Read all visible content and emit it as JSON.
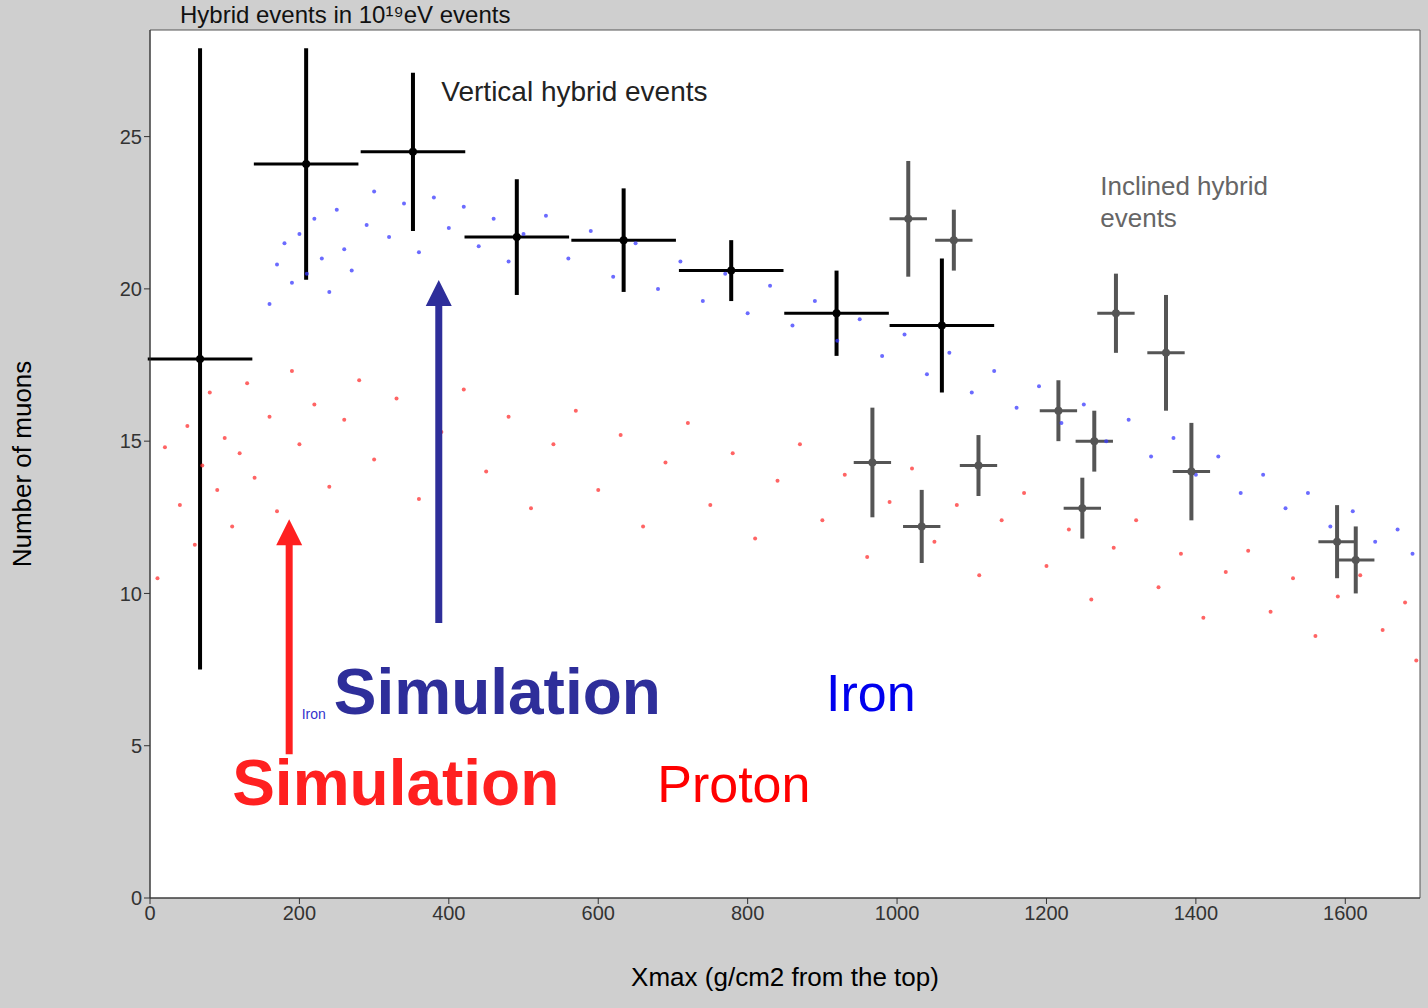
{
  "chart_data": {
    "type": "scatter",
    "title": "Hybrid events in 10¹⁹eV events",
    "x_label": "Xmax (g/cm2 from the top)",
    "y_label": "Number of muons",
    "xlim": [
      0,
      1700
    ],
    "ylim": [
      0,
      28.5
    ],
    "xticks": [
      0,
      200,
      400,
      600,
      800,
      1000,
      1200,
      1400,
      1600
    ],
    "yticks": [
      0,
      5,
      10,
      15,
      20,
      25
    ],
    "grid": false,
    "series": [
      {
        "name": "Iron",
        "color": "#3a3aff",
        "marker": "dot",
        "x": [
          160,
          170,
          180,
          190,
          200,
          210,
          220,
          230,
          240,
          250,
          260,
          270,
          290,
          300,
          320,
          340,
          360,
          380,
          400,
          420,
          440,
          460,
          480,
          500,
          530,
          560,
          590,
          620,
          650,
          680,
          710,
          740,
          770,
          800,
          830,
          860,
          890,
          920,
          950,
          980,
          1010,
          1040,
          1070,
          1100,
          1130,
          1160,
          1190,
          1220,
          1250,
          1280,
          1310,
          1340,
          1370,
          1400,
          1430,
          1460,
          1490,
          1520,
          1550,
          1580,
          1610,
          1640,
          1670,
          1690
        ],
        "y": [
          19.5,
          20.8,
          21.5,
          20.2,
          21.8,
          20.5,
          22.3,
          21.0,
          19.9,
          22.6,
          21.3,
          20.6,
          22.1,
          23.2,
          21.7,
          22.8,
          21.2,
          23.0,
          22.0,
          22.7,
          21.4,
          22.3,
          20.9,
          21.8,
          22.4,
          21.0,
          21.9,
          20.4,
          21.5,
          20.0,
          20.9,
          19.6,
          20.5,
          19.2,
          20.1,
          18.8,
          19.6,
          18.3,
          19.0,
          17.8,
          18.5,
          17.2,
          17.9,
          16.6,
          17.3,
          16.1,
          16.8,
          15.6,
          16.2,
          15.0,
          15.7,
          14.5,
          15.1,
          13.9,
          14.5,
          13.3,
          13.9,
          12.8,
          13.3,
          12.2,
          12.7,
          11.7,
          12.1,
          11.3
        ]
      },
      {
        "name": "Proton",
        "color": "#ff3030",
        "marker": "dot",
        "x": [
          10,
          20,
          40,
          50,
          60,
          70,
          80,
          90,
          100,
          110,
          120,
          130,
          140,
          160,
          170,
          190,
          200,
          220,
          240,
          260,
          280,
          300,
          330,
          360,
          390,
          420,
          450,
          480,
          510,
          540,
          570,
          600,
          630,
          660,
          690,
          720,
          750,
          780,
          810,
          840,
          870,
          900,
          930,
          960,
          990,
          1020,
          1050,
          1080,
          1110,
          1140,
          1170,
          1200,
          1230,
          1260,
          1290,
          1320,
          1350,
          1380,
          1410,
          1440,
          1470,
          1500,
          1530,
          1560,
          1590,
          1620,
          1650,
          1680,
          1695
        ],
        "y": [
          10.5,
          14.8,
          12.9,
          15.5,
          11.6,
          14.2,
          16.6,
          13.4,
          15.1,
          12.2,
          14.6,
          16.9,
          13.8,
          15.8,
          12.7,
          17.3,
          14.9,
          16.2,
          13.5,
          15.7,
          17.0,
          14.4,
          16.4,
          13.1,
          15.3,
          16.7,
          14.0,
          15.8,
          12.8,
          14.9,
          16.0,
          13.4,
          15.2,
          12.2,
          14.3,
          15.6,
          12.9,
          14.6,
          11.8,
          13.7,
          14.9,
          12.4,
          13.9,
          11.2,
          13.0,
          14.1,
          11.7,
          12.9,
          10.6,
          12.4,
          13.3,
          10.9,
          12.1,
          9.8,
          11.5,
          12.4,
          10.2,
          11.3,
          9.2,
          10.7,
          11.4,
          9.4,
          10.5,
          8.6,
          9.9,
          10.6,
          8.8,
          9.7,
          7.8
        ]
      },
      {
        "color": "#000000",
        "marker": "circle",
        "x": [
          67,
          209,
          352,
          491,
          634,
          778,
          919,
          1060
        ],
        "y": [
          17.7,
          24.1,
          24.5,
          21.7,
          21.6,
          20.6,
          19.2,
          18.8
        ],
        "xerr": [
          70,
          70,
          70,
          70,
          70,
          70,
          70,
          70
        ],
        "yerr": [
          10.2,
          3.8,
          2.6,
          1.9,
          1.7,
          1.0,
          1.4,
          2.2
        ]
      },
      {
        "color": "#555555",
        "marker": "circle",
        "x": [
          1015,
          1076,
          967,
          1033,
          1109,
          1216,
          1248,
          1264,
          1293,
          1360,
          1394,
          1589,
          1614
        ],
        "y": [
          22.3,
          21.6,
          14.3,
          12.2,
          14.2,
          16.0,
          12.8,
          15.0,
          19.2,
          17.9,
          14.0,
          11.7,
          11.1
        ],
        "xerr": [
          25,
          25,
          25,
          25,
          25,
          25,
          25,
          25,
          25,
          25,
          25,
          25,
          25
        ],
        "yerr": [
          1.9,
          1.0,
          1.8,
          1.2,
          1.0,
          1.0,
          1.0,
          1.0,
          1.3,
          1.9,
          1.6,
          1.2,
          1.1
        ]
      }
    ],
    "annotations": [
      {
        "text": "Vertical hybrid events",
        "x": 390,
        "y": 26.4,
        "color": "#222222"
      },
      {
        "text": "Inclined hybrid events",
        "x": 1272,
        "y": 23.3,
        "color": "#666666"
      },
      {
        "text": "Iron",
        "x": 203,
        "y": 6.0,
        "color": "#3333cc"
      },
      {
        "text": "Simulation",
        "x": 246,
        "y": 6.6,
        "color": "#2e2e9a",
        "marker": "arrow"
      },
      {
        "text": "Iron",
        "x": 905,
        "y": 6.6,
        "color": "#0000ee"
      },
      {
        "text": "Simulation",
        "x": 110,
        "y": 3.6,
        "color": "#ff2020",
        "marker": "arrow"
      },
      {
        "text": "Proton",
        "x": 679,
        "y": 3.6,
        "color": "#ff0000"
      }
    ]
  }
}
